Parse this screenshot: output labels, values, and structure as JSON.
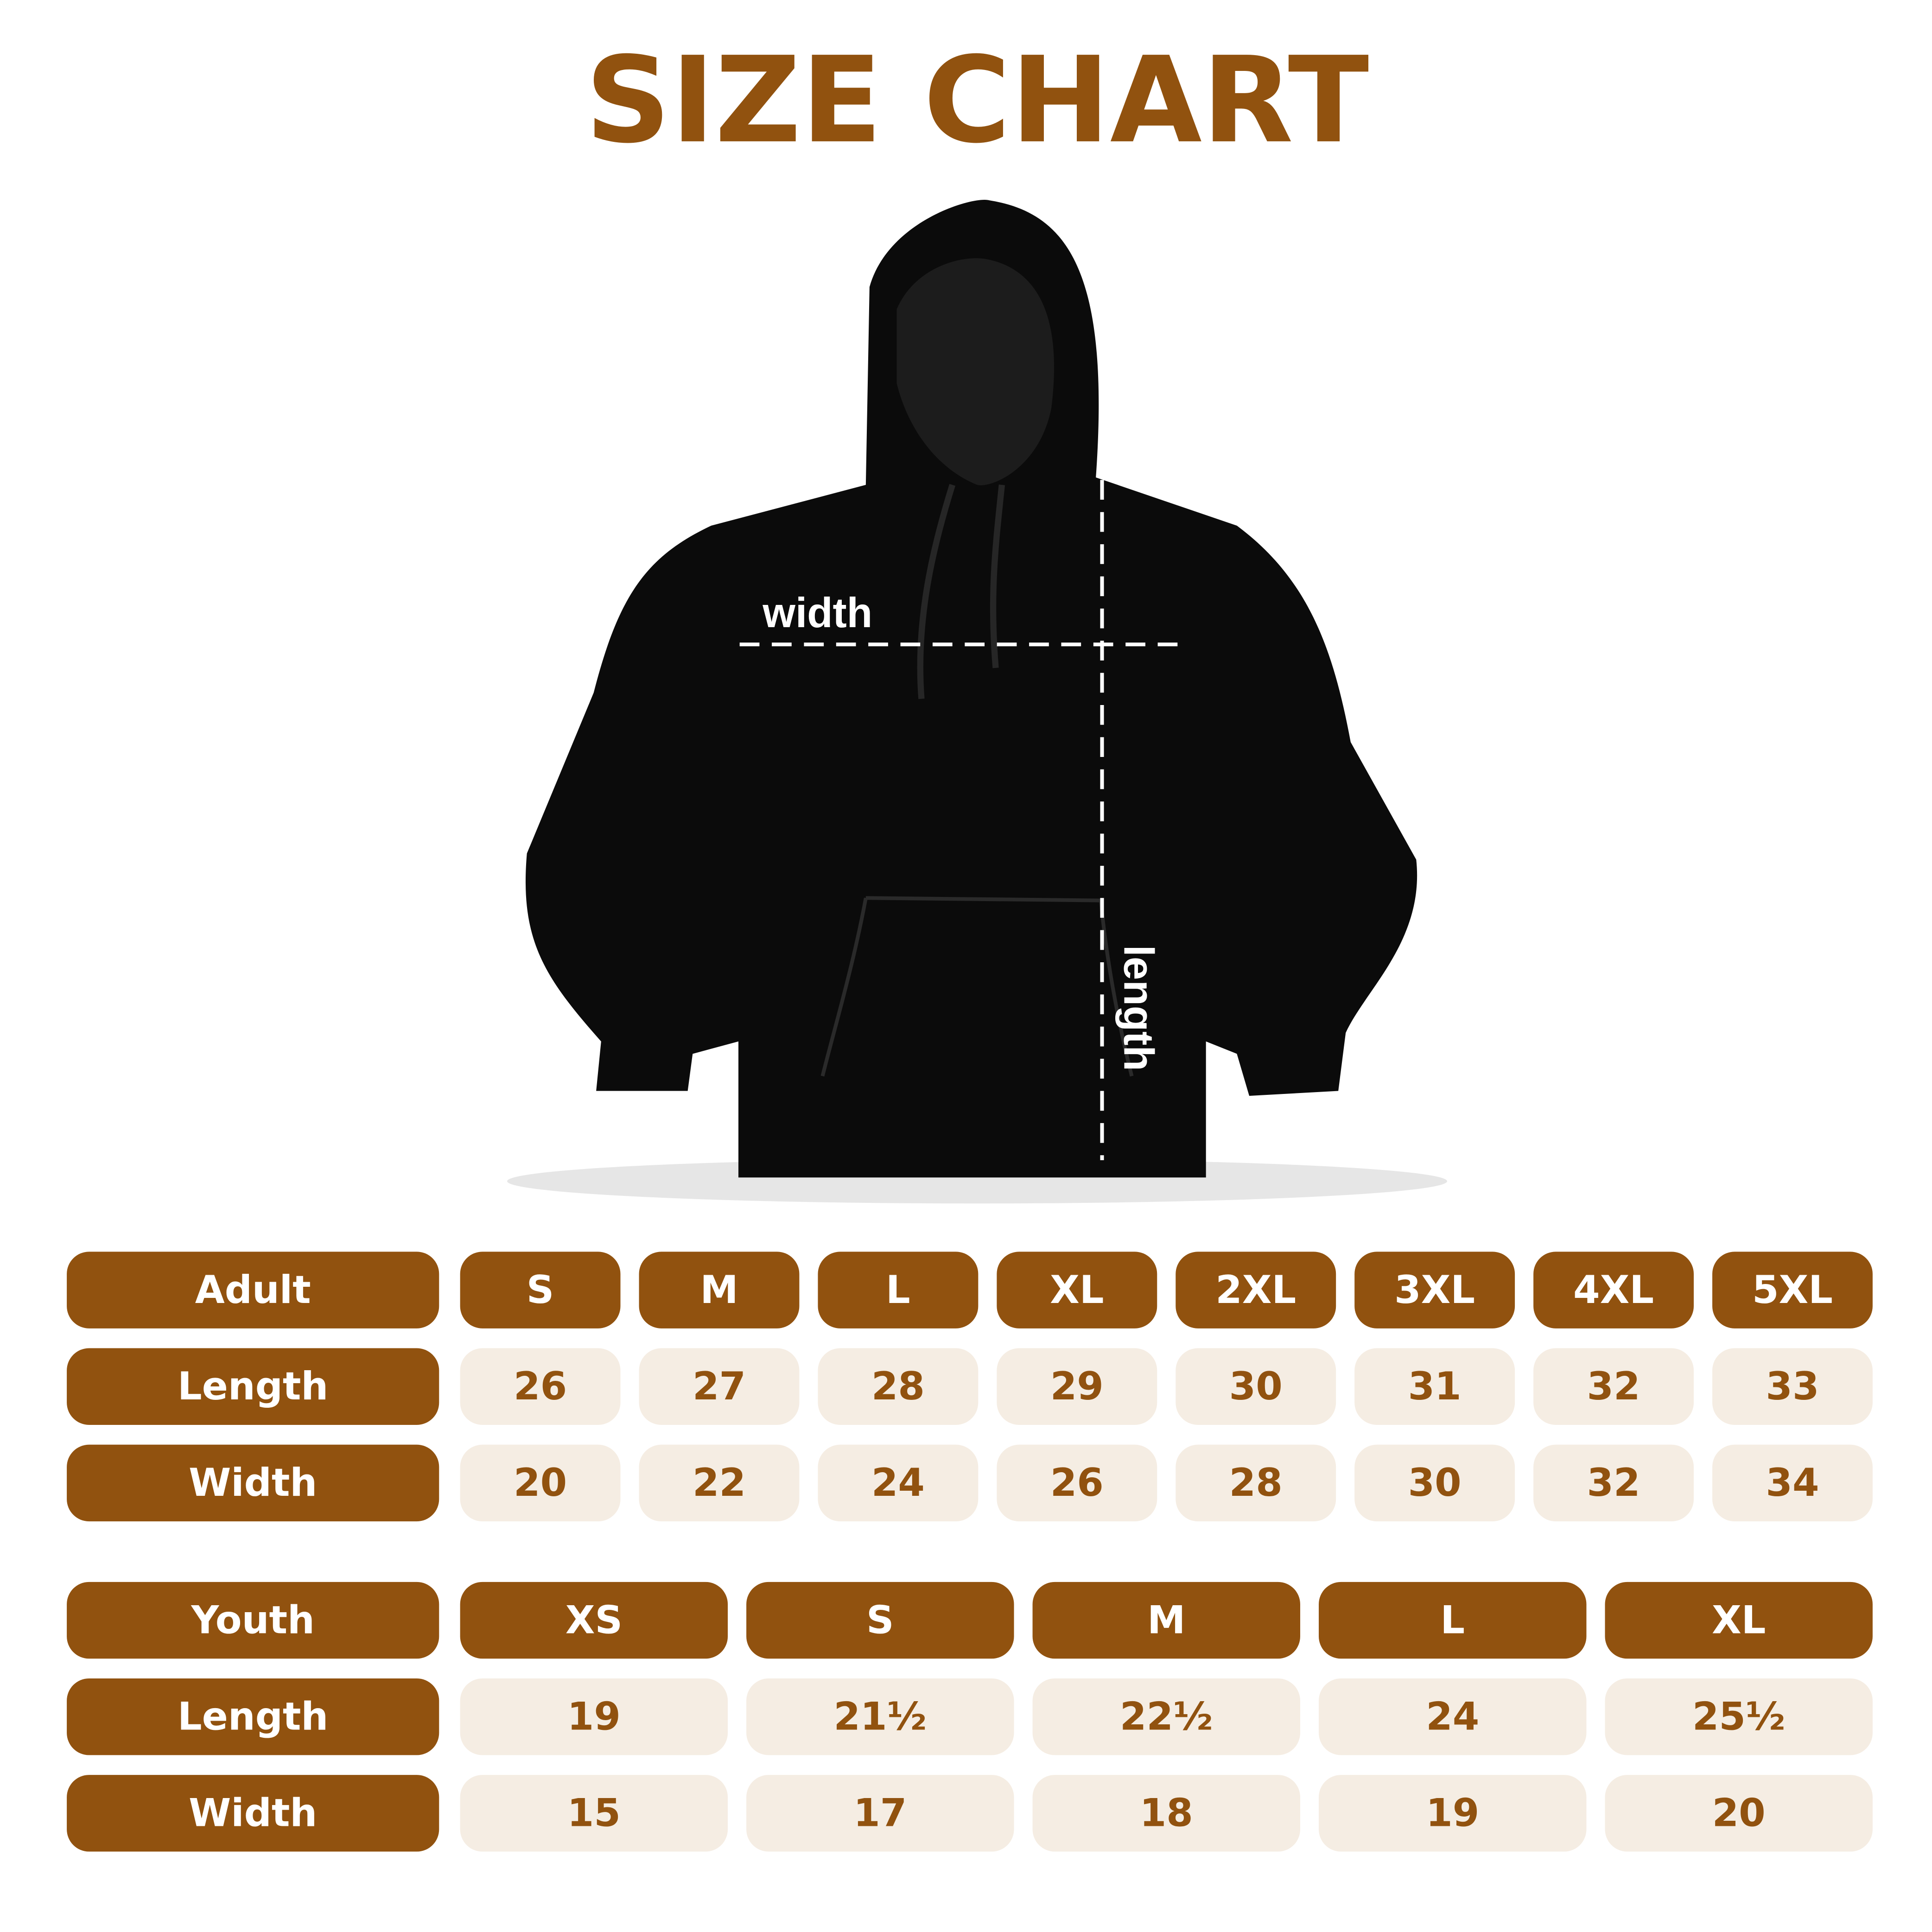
{
  "title": "SIZE CHART",
  "diagram": {
    "width_label": "width",
    "length_label": "length"
  },
  "adult": {
    "header": [
      "Adult",
      "S",
      "M",
      "L",
      "XL",
      "2XL",
      "3XL",
      "4XL",
      "5XL"
    ],
    "rows": [
      [
        "Length",
        "26",
        "27",
        "28",
        "29",
        "30",
        "31",
        "32",
        "33"
      ],
      [
        "Width",
        "20",
        "22",
        "24",
        "26",
        "28",
        "30",
        "32",
        "34"
      ]
    ]
  },
  "youth": {
    "header": [
      "Youth",
      "XS",
      "S",
      "M",
      "L",
      "XL"
    ],
    "rows": [
      [
        "Length",
        "19",
        "21½",
        "22½",
        "24",
        "25½"
      ],
      [
        "Width",
        "15",
        "17",
        "18",
        "19",
        "20"
      ]
    ]
  }
}
